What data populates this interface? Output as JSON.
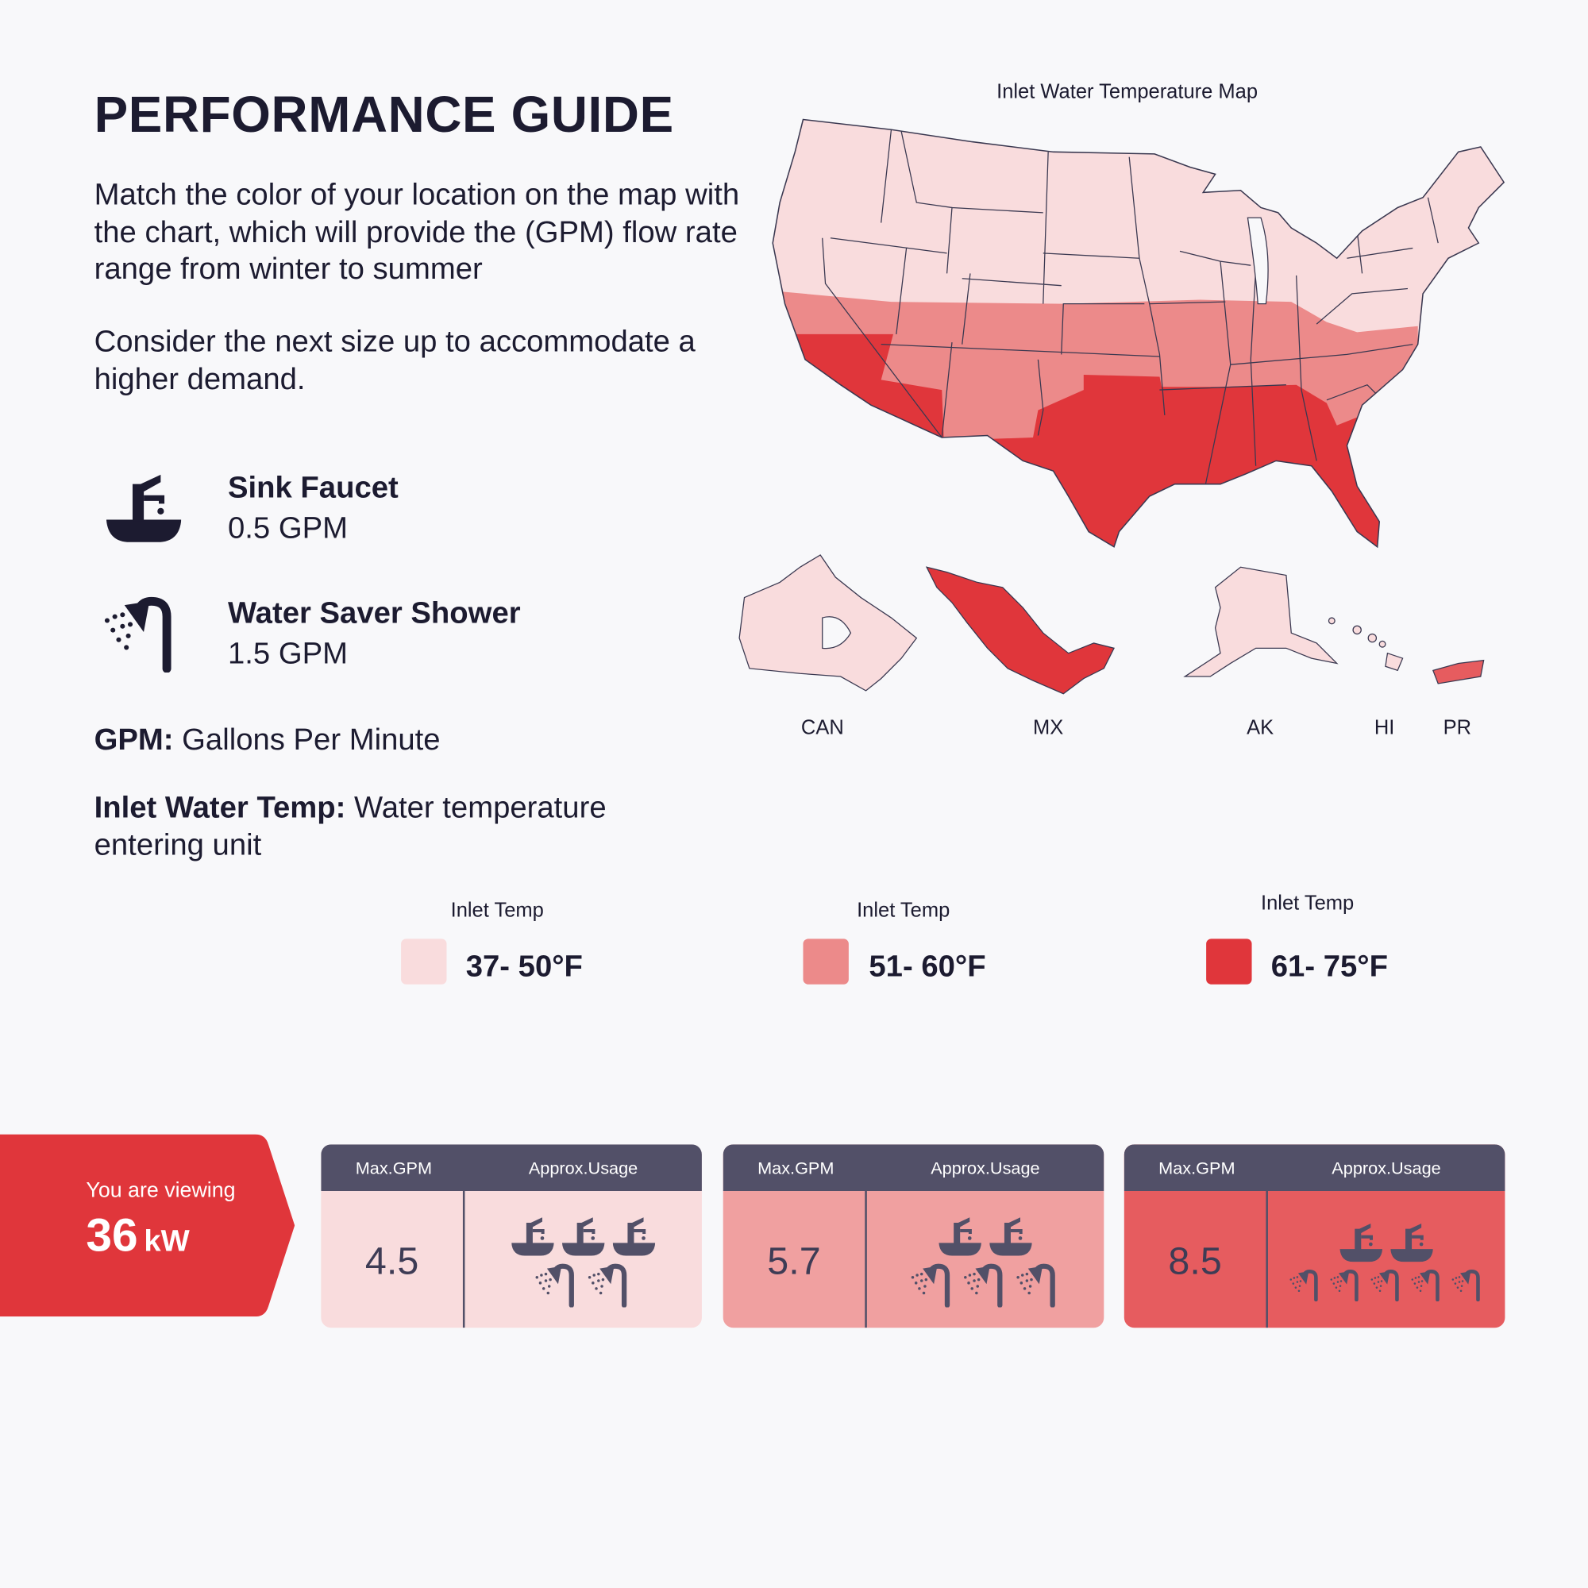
{
  "header": {
    "title": "PERFORMANCE GUIDE"
  },
  "intro": {
    "paragraph1": "Match the color of your location on the map with the chart, which will provide the (GPM) flow rate range from winter to summer",
    "paragraph2": "Consider the next size up to accommodate a higher demand."
  },
  "fixtures": [
    {
      "icon": "sink-faucet-icon",
      "name": "Sink Faucet",
      "flow": "0.5 GPM"
    },
    {
      "icon": "shower-icon",
      "name": "Water Saver Shower",
      "flow": "1.5 GPM"
    }
  ],
  "definitions": [
    {
      "term": "GPM:",
      "text": " Gallons Per Minute"
    },
    {
      "term": "Inlet Water Temp:",
      "text": " Water temperature entering unit"
    }
  ],
  "map": {
    "title": "Inlet Water Temperature Map",
    "insets": [
      "CAN",
      "MX",
      "AK",
      "HI",
      "PR"
    ]
  },
  "legend": [
    {
      "label": "Inlet Temp",
      "range": "37- 50°F",
      "color": "#f9dcdd"
    },
    {
      "label": "Inlet Temp",
      "range": "51- 60°F",
      "color": "#ec8a8a"
    },
    {
      "label": "Inlet Temp",
      "range": "61- 75°F",
      "color": "#e0363b"
    }
  ],
  "banner": {
    "line1": "You are viewing",
    "value": "36",
    "unit": "kW",
    "color": "#e0363b"
  },
  "cards": [
    {
      "col1": "Max.GPM",
      "col2": "Approx.Usage",
      "gpm": "4.5",
      "faucets": 3,
      "showers": 2,
      "bg": "#f9dcdd"
    },
    {
      "col1": "Max.GPM",
      "col2": "Approx.Usage",
      "gpm": "5.7",
      "faucets": 2,
      "showers": 3,
      "bg": "#f0a0a0"
    },
    {
      "col1": "Max.GPM",
      "col2": "Approx.Usage",
      "gpm": "8.5",
      "faucets": 2,
      "showers": 5,
      "bg": "#e65c5f"
    }
  ]
}
